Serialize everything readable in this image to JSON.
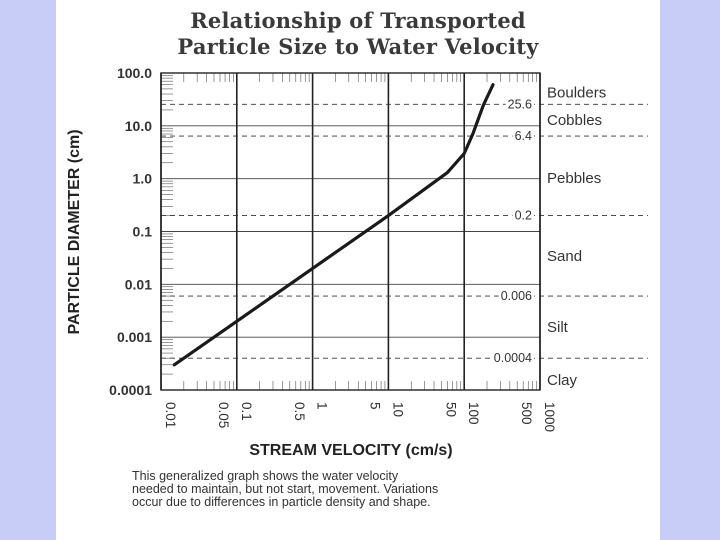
{
  "chart_data": {
    "type": "line",
    "title": "Relationship of Transported",
    "subtitle": "Particle Size to Water Velocity",
    "xlabel": "STREAM VELOCITY (cm/s)",
    "ylabel": "PARTICLE DIAMETER (cm)",
    "x_scale": "log",
    "y_scale": "log",
    "xlim": [
      0.01,
      1000
    ],
    "ylim": [
      0.0001,
      100
    ],
    "grid": true,
    "y_ticks": [
      "0.0001",
      "0.001",
      "0.01",
      "0.1",
      "1.0",
      "10.0",
      "100.0"
    ],
    "x_ticks": [
      "0.01",
      "0.05",
      "0.1",
      "0.5",
      "1",
      "5",
      "10",
      "50",
      "100",
      "500",
      "1000"
    ],
    "series": [
      {
        "x": [
          0.015,
          0.05,
          0.1,
          1,
          10,
          60,
          100,
          130,
          180,
          240
        ],
        "y": [
          0.0003,
          0.001,
          0.002,
          0.02,
          0.2,
          1.3,
          3,
          7,
          25,
          60
        ]
      }
    ],
    "size_classes": [
      {
        "label": "Boulders"
      },
      {
        "label": "Cobbles"
      },
      {
        "label": "Pebbles"
      },
      {
        "label": "Sand"
      },
      {
        "label": "Silt"
      },
      {
        "label": "Clay"
      }
    ],
    "class_thresholds": [
      {
        "label": "25.6",
        "value": 25.6
      },
      {
        "label": "6.4",
        "value": 6.4
      },
      {
        "label": "0.2",
        "value": 0.2
      },
      {
        "label": "0.006",
        "value": 0.006
      },
      {
        "label": "0.0004",
        "value": 0.0004
      }
    ],
    "caption_lines": [
      "This generalized graph shows the water velocity",
      "needed to maintain, but not start, movement. Variations",
      "occur due to differences in particle density and  shape."
    ]
  },
  "colors": {
    "background": "#c8cdf7",
    "panel": "#ffffff",
    "line": "#1a1a1a",
    "text": "#333333"
  }
}
